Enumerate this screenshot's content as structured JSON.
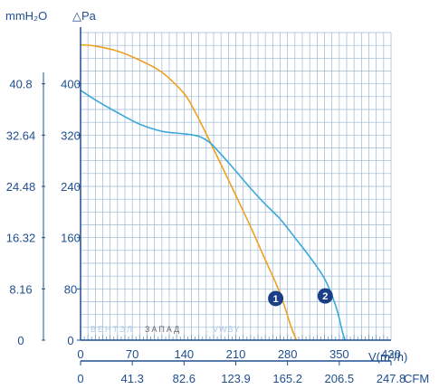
{
  "chart_data": {
    "type": "line",
    "header": {
      "left_unit": "mmH₂O",
      "right_unit": "△Pa"
    },
    "xlabel": "V(m³/h)",
    "xlabel_secondary": "CFM",
    "x_ticks": [
      "0",
      "70",
      "140",
      "210",
      "280",
      "350",
      "420"
    ],
    "x_ticks_secondary": [
      "0",
      "41.3",
      "82.6",
      "123.9",
      "165.2",
      "206.5",
      "247.8"
    ],
    "y_ticks_pa": [
      "0",
      "80",
      "160",
      "240",
      "320",
      "400"
    ],
    "y_ticks_mmh2o": [
      "0",
      "8.16",
      "16.32",
      "24.48",
      "32.64",
      "40.8"
    ],
    "xlim": [
      0,
      420
    ],
    "ylim": [
      0,
      480
    ],
    "grid": true,
    "series": [
      {
        "name": "1",
        "color": "#f0a020",
        "points": [
          [
            0,
            461
          ],
          [
            20,
            459
          ],
          [
            50,
            451
          ],
          [
            80,
            437
          ],
          [
            110,
            418
          ],
          [
            140,
            385
          ],
          [
            155,
            356
          ],
          [
            170,
            322
          ],
          [
            190,
            274
          ],
          [
            210,
            226
          ],
          [
            230,
            177
          ],
          [
            250,
            125
          ],
          [
            265,
            87
          ],
          [
            275,
            56
          ],
          [
            285,
            20
          ],
          [
            292,
            0
          ]
        ]
      },
      {
        "name": "2",
        "color": "#3aa8d8",
        "points": [
          [
            0,
            390
          ],
          [
            20,
            375
          ],
          [
            50,
            355
          ],
          [
            80,
            337
          ],
          [
            110,
            326
          ],
          [
            140,
            322
          ],
          [
            160,
            318
          ],
          [
            175,
            308
          ],
          [
            190,
            290
          ],
          [
            210,
            264
          ],
          [
            230,
            237
          ],
          [
            250,
            212
          ],
          [
            270,
            189
          ],
          [
            290,
            160
          ],
          [
            310,
            130
          ],
          [
            330,
            96
          ],
          [
            345,
            54
          ],
          [
            355,
            10
          ],
          [
            358,
            0
          ]
        ]
      }
    ],
    "badges": [
      {
        "label": "1",
        "x": 264,
        "y": 65
      },
      {
        "label": "2",
        "x": 331,
        "y": 69
      }
    ],
    "watermark": [
      "ВЕНТЭЛ",
      "ЗАПАД",
      ". VWBY"
    ]
  }
}
